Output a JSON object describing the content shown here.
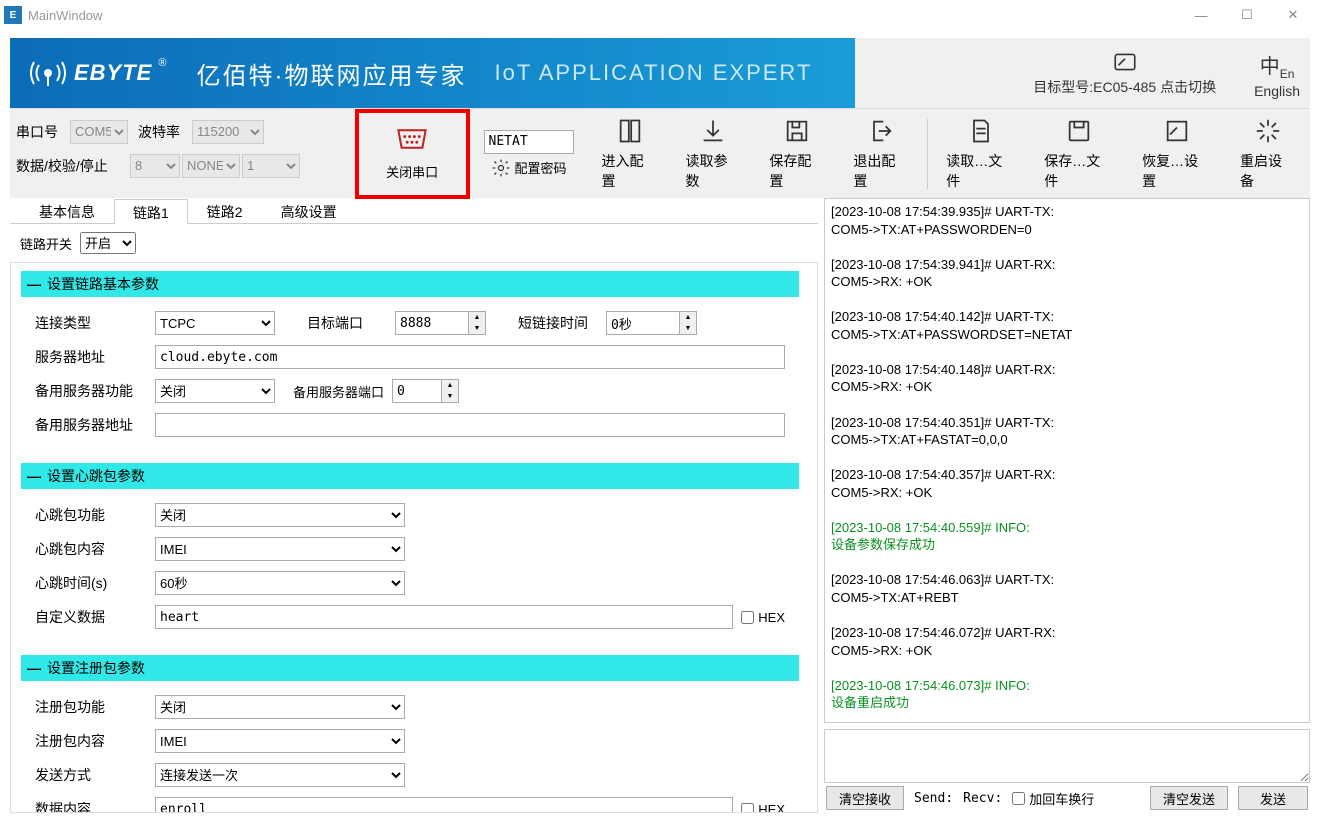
{
  "window": {
    "title": "MainWindow",
    "icon_letter": "E"
  },
  "banner": {
    "logo_text": "EBYTE",
    "tagline": "亿佰特·物联网应用专家",
    "subtag": "IoT APPLICATION EXPERT",
    "target_label": "目标型号:EC05-485 点击切换",
    "lang_label": "English"
  },
  "serial": {
    "port_label": "串口号",
    "port_value": "COM5",
    "baud_label": "波特率",
    "baud_value": "115200",
    "params_label": "数据/校验/停止",
    "data_value": "8",
    "parity_value": "NONE",
    "stop_value": "1",
    "close_label": "关闭串口"
  },
  "toolbar": {
    "pwd_value": "NETAT",
    "pwd_label": "配置密码",
    "enter": "进入配置",
    "read": "读取参数",
    "save": "保存配置",
    "exit": "退出配置",
    "readf": "读取…文件",
    "savef": "保存…文件",
    "restore": "恢复…设置",
    "reboot": "重启设备"
  },
  "tabs": {
    "t1": "基本信息",
    "t2": "链路1",
    "t3": "链路2",
    "t4": "高级设置"
  },
  "linkswitch": {
    "label": "链路开关",
    "value": "开启"
  },
  "group1": {
    "title": "设置链路基本参数",
    "conn_type_label": "连接类型",
    "conn_type": "TCPC",
    "target_port_label": "目标端口",
    "target_port": "8888",
    "short_time_label": "短链接时间",
    "short_time": "0秒",
    "server_label": "服务器地址",
    "server": "cloud.ebyte.com",
    "bak_func_label": "备用服务器功能",
    "bak_func": "关闭",
    "bak_port_label": "备用服务器端口",
    "bak_port": "0",
    "bak_addr_label": "备用服务器地址",
    "bak_addr": ""
  },
  "group2": {
    "title": "设置心跳包参数",
    "func_label": "心跳包功能",
    "func": "关闭",
    "content_label": "心跳包内容",
    "content": "IMEI",
    "time_label": "心跳时间(s)",
    "time": "60秒",
    "custom_label": "自定义数据",
    "custom": "heart",
    "hex": "HEX"
  },
  "group3": {
    "title": "设置注册包参数",
    "func_label": "注册包功能",
    "func": "关闭",
    "content_label": "注册包内容",
    "content": "IMEI",
    "mode_label": "发送方式",
    "mode": "连接发送一次",
    "data_label": "数据内容",
    "data": "enroll",
    "hex": "HEX"
  },
  "console": {
    "lines": [
      {
        "t": "[2023-10-08 17:54:39.935]# UART-TX:",
        "c": "n"
      },
      {
        "t": "COM5->TX:AT+PASSWORDEN=0",
        "c": "n"
      },
      {
        "t": "",
        "c": "n"
      },
      {
        "t": "[2023-10-08 17:54:39.941]# UART-RX:",
        "c": "n"
      },
      {
        "t": "COM5->RX: +OK",
        "c": "n"
      },
      {
        "t": "",
        "c": "n"
      },
      {
        "t": "[2023-10-08 17:54:40.142]# UART-TX:",
        "c": "n"
      },
      {
        "t": "COM5->TX:AT+PASSWORDSET=NETAT",
        "c": "n"
      },
      {
        "t": "",
        "c": "n"
      },
      {
        "t": "[2023-10-08 17:54:40.148]# UART-RX:",
        "c": "n"
      },
      {
        "t": "COM5->RX: +OK",
        "c": "n"
      },
      {
        "t": "",
        "c": "n"
      },
      {
        "t": "[2023-10-08 17:54:40.351]# UART-TX:",
        "c": "n"
      },
      {
        "t": "COM5->TX:AT+FASTAT=0,0,0",
        "c": "n"
      },
      {
        "t": "",
        "c": "n"
      },
      {
        "t": "[2023-10-08 17:54:40.357]# UART-RX:",
        "c": "n"
      },
      {
        "t": "COM5->RX: +OK",
        "c": "n"
      },
      {
        "t": "",
        "c": "n"
      },
      {
        "t": "[2023-10-08 17:54:40.559]# INFO:",
        "c": "i"
      },
      {
        "t": "设备参数保存成功",
        "c": "i"
      },
      {
        "t": "",
        "c": "n"
      },
      {
        "t": "[2023-10-08 17:54:46.063]# UART-TX:",
        "c": "n"
      },
      {
        "t": "COM5->TX:AT+REBT",
        "c": "n"
      },
      {
        "t": "",
        "c": "n"
      },
      {
        "t": "[2023-10-08 17:54:46.072]# UART-RX:",
        "c": "n"
      },
      {
        "t": "COM5->RX: +OK",
        "c": "n"
      },
      {
        "t": "",
        "c": "n"
      },
      {
        "t": "[2023-10-08 17:54:46.073]# INFO:",
        "c": "i"
      },
      {
        "t": "设备重启成功",
        "c": "i"
      }
    ]
  },
  "bottom": {
    "clear_recv": "清空接收",
    "send": "Send:",
    "recv": "Recv:",
    "cr": "加回车换行",
    "clear_send": "清空发送",
    "send_btn": "发送"
  }
}
